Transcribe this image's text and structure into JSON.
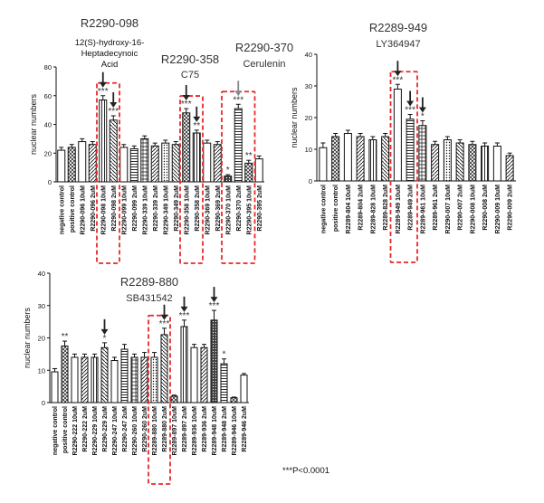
{
  "chart_data": [
    {
      "type": "bar",
      "panel": "top-left",
      "ylabel": "nuclear numbers",
      "ylim": [
        0,
        80
      ],
      "yticks": [
        0,
        20,
        40,
        60,
        80
      ],
      "categories": [
        "negative control",
        "positive control",
        "R2290-096 10uM",
        "R2290-096 2uM",
        "R2290-098 10uM",
        "R2290-098 2uM",
        "R2290-099 10uM",
        "R2290-099 2uM",
        "R2290-339 10uM",
        "R2290-339 2uM",
        "R2290-349 10uM",
        "R2290-349 2uM",
        "R2290-358 10uM",
        "R2290-358 2uM",
        "R2290-369 10uM",
        "R2290-369 2uM",
        "R2290-370 10uM",
        "R2290-370 2uM",
        "R2290-395 10uM",
        "R2290-395 2uM"
      ],
      "values": [
        22,
        24,
        28,
        26,
        57,
        43,
        24,
        23,
        30,
        25,
        27,
        26,
        48,
        34,
        27,
        26,
        4,
        51,
        13,
        16
      ],
      "errors": [
        2,
        2,
        2,
        2,
        3,
        3,
        2,
        2,
        2,
        2,
        2,
        2,
        3,
        2,
        2,
        2,
        1,
        3,
        2,
        2
      ],
      "significance": [
        "",
        "",
        "",
        "",
        "***",
        "***",
        "",
        "",
        "",
        "",
        "",
        "",
        "***",
        "**",
        "",
        "",
        "*",
        "***",
        "**",
        ""
      ],
      "arrows": [
        4,
        5,
        12,
        13,
        17
      ],
      "arrow_colors": [
        "#222222",
        "#222222",
        "#222222",
        "#222222",
        "#888888"
      ],
      "boxes": [
        [
          4,
          5
        ],
        [
          12,
          13
        ],
        [
          16,
          18
        ]
      ],
      "compound_labels": [
        {
          "name": "R2290-098",
          "sub": "12(S)-hydroxy-16-Heptadecynoic Acid"
        },
        {
          "name": "R2290-358",
          "sub": "C75"
        },
        {
          "name": "R2290-370",
          "sub": "Cerulenin"
        }
      ]
    },
    {
      "type": "bar",
      "panel": "top-right",
      "ylabel": "nuclear numbers",
      "ylim": [
        0,
        40
      ],
      "yticks": [
        0,
        10,
        20,
        30,
        40
      ],
      "categories": [
        "negative control",
        "positive control",
        "R2289-804 10uM",
        "R2289-804 2uM",
        "R2289-828 10uM",
        "R2289-828 2uM",
        "R2289-949 10uM",
        "R2289-949 2uM",
        "R2289-961 10uM",
        "R2289-961 2uM",
        "R2290-007 10uM",
        "R2290-007 2uM",
        "R2290-008 10uM",
        "R2290-008 2uM",
        "R2290-009 10uM",
        "R2290-009 2uM"
      ],
      "values": [
        10.5,
        14,
        15,
        14,
        13,
        14,
        29,
        19.5,
        17.5,
        11.5,
        13,
        12,
        11.5,
        11,
        11,
        8
      ],
      "errors": [
        1.5,
        1,
        1,
        1,
        1,
        1,
        1.5,
        1.5,
        1.5,
        1,
        1,
        1,
        1,
        1,
        1,
        0.8
      ],
      "significance": [
        "",
        "",
        "",
        "",
        "",
        "",
        "***",
        "***",
        "*",
        "",
        "",
        "",
        "",
        "",
        "",
        ""
      ],
      "arrows": [
        6,
        7,
        8
      ],
      "arrow_colors": [
        "#222222",
        "#222222",
        "#222222"
      ],
      "boxes": [
        [
          6,
          7
        ]
      ],
      "compound_labels": [
        {
          "name": "R2289-949",
          "sub": "LY364947"
        }
      ]
    },
    {
      "type": "bar",
      "panel": "bottom-left",
      "ylabel": "nuclear numbers",
      "ylim": [
        0,
        40
      ],
      "yticks": [
        0,
        10,
        20,
        30,
        40
      ],
      "categories": [
        "negative control",
        "positive control",
        "R2290-222 10uM",
        "R2290-222 2uM",
        "R2290-229 10uM",
        "R2290-229 2uM",
        "R2290-247 10uM",
        "R2290-247 2uM",
        "R2290-260 10uM",
        "R2290-260 2uM",
        "R2289-880 10uM",
        "R2289-880 2uM",
        "R2289-897 10uM",
        "R2289-897 2uM",
        "R2289-936 10uM",
        "R2289-936 2uM",
        "R2289-948 10uM",
        "R2289-948 2uM",
        "R2289-946 10uM",
        "R2289-946 2uM"
      ],
      "values": [
        9.5,
        17.5,
        14,
        14,
        14,
        17,
        13,
        16.5,
        14,
        14,
        14,
        21,
        2,
        23.5,
        17,
        17,
        25.5,
        12,
        1.5,
        8.5
      ],
      "errors": [
        1,
        1.5,
        1,
        1,
        1,
        1.5,
        1,
        1.5,
        1,
        1.5,
        1.5,
        2,
        0.3,
        2,
        1,
        1,
        3,
        1.5,
        0.2,
        0.5
      ],
      "significance": [
        "",
        "**",
        "",
        "",
        "",
        "*",
        "",
        "",
        "",
        "",
        "",
        "***",
        "",
        "***",
        "",
        "",
        "***",
        "*",
        "",
        ""
      ],
      "arrows": [
        5,
        11,
        13,
        16
      ],
      "arrow_colors": [
        "#222222",
        "#222222",
        "#222222",
        "#222222"
      ],
      "boxes": [
        [
          10,
          11
        ]
      ],
      "compound_labels": [
        {
          "name": "R2289-880",
          "sub": "SB431542"
        }
      ]
    }
  ],
  "footnote": "***P<0.0001",
  "colors": {
    "bar_stroke": "#111111",
    "box": "#e8282a",
    "text": "#111111",
    "gray_text": "#555555"
  }
}
